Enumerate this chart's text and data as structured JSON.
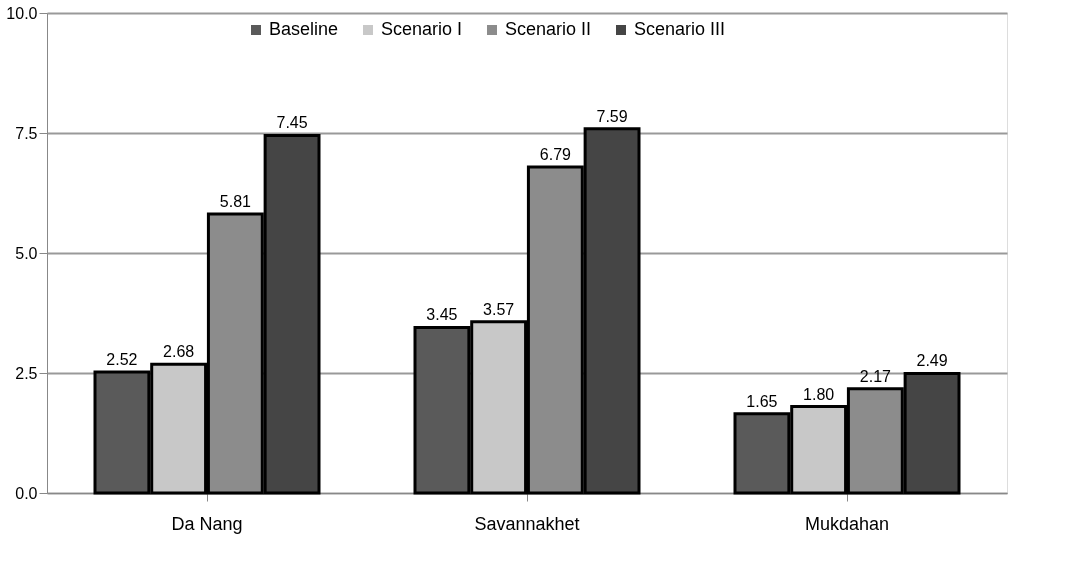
{
  "chart_data": {
    "type": "bar",
    "categories": [
      "Da Nang",
      "Savannakhet",
      "Mukdahan"
    ],
    "series": [
      {
        "name": "Baseline",
        "color": "#5a5a5a",
        "values": [
          2.52,
          3.45,
          1.65
        ],
        "value_labels": [
          "2.52",
          "3.45",
          "1.65"
        ]
      },
      {
        "name": "Scenario I",
        "color": "#c8c8c8",
        "values": [
          2.68,
          3.57,
          1.8
        ],
        "value_labels": [
          "2.68",
          "3.57",
          "1.80"
        ]
      },
      {
        "name": "Scenario II",
        "color": "#8c8c8c",
        "values": [
          5.81,
          6.79,
          2.17
        ],
        "value_labels": [
          "5.81",
          "6.79",
          "2.17"
        ]
      },
      {
        "name": "Scenario III",
        "color": "#454545",
        "values": [
          7.45,
          7.59,
          2.49
        ],
        "value_labels": [
          "7.45",
          "7.59",
          "2.49"
        ]
      }
    ],
    "ylim": [
      0,
      10
    ],
    "yticks": [
      {
        "value": 0,
        "label": "0.0"
      },
      {
        "value": 2.5,
        "label": "2.5"
      },
      {
        "value": 5,
        "label": "5.0"
      },
      {
        "value": 7.5,
        "label": "7.5"
      },
      {
        "value": 10,
        "label": "10.0"
      }
    ],
    "grid": "y",
    "legend": "top"
  }
}
